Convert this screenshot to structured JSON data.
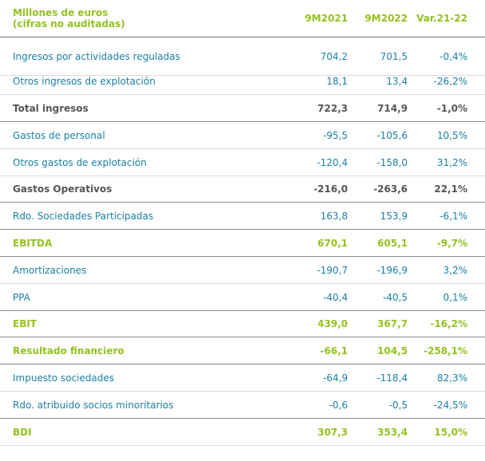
{
  "header": {
    "title_line1": "Millones de euros",
    "title_line2": "(cifras no auditadas)",
    "col_2021": "9M2021",
    "col_2022": "9M2022",
    "col_var": "Var.21-22"
  },
  "colors": {
    "accent_green": "#94c11f",
    "row_blue": "#1a7fa6",
    "total_gray": "#555555"
  },
  "rows": [
    {
      "label": "Ingresos por actividades reguladas",
      "v2021": "704,2",
      "v2022": "701,5",
      "var": "-0,4%",
      "style": "blue"
    },
    {
      "label": "Otros ingresos de explotación",
      "v2021": "18,1",
      "v2022": "13,4",
      "var": "-26,2%",
      "style": "blue"
    },
    {
      "label": "Total ingresos",
      "v2021": "722,3",
      "v2022": "714,9",
      "var": "-1,0%",
      "style": "gray"
    },
    {
      "label": "Gastos de personal",
      "v2021": "-95,5",
      "v2022": "-105,6",
      "var": "10,5%",
      "style": "blue"
    },
    {
      "label": "Otros gastos de explotación",
      "v2021": "-120,4",
      "v2022": "-158,0",
      "var": "31,2%",
      "style": "blue"
    },
    {
      "label": "Gastos Operativos",
      "v2021": "-216,0",
      "v2022": "-263,6",
      "var": "22,1%",
      "style": "gray"
    },
    {
      "label": "Rdo. Sociedades Participadas",
      "v2021": "163,8",
      "v2022": "153,9",
      "var": "-6,1%",
      "style": "blue"
    },
    {
      "label": "EBITDA",
      "v2021": "670,1",
      "v2022": "605,1",
      "var": "-9,7%",
      "style": "green"
    },
    {
      "label": "Amortizaciones",
      "v2021": "-190,7",
      "v2022": "-196,9",
      "var": "3,2%",
      "style": "blue"
    },
    {
      "label": "PPA",
      "v2021": "-40,4",
      "v2022": "-40,5",
      "var": "0,1%",
      "style": "blue"
    },
    {
      "label": "EBIT",
      "v2021": "439,0",
      "v2022": "367,7",
      "var": "-16,2%",
      "style": "green"
    },
    {
      "label": "Resultado financiero",
      "v2021": "-66,1",
      "v2022": "104,5",
      "var": "-258,1%",
      "style": "green"
    },
    {
      "label": "Impuesto sociedades",
      "v2021": "-64,9",
      "v2022": "-118,4",
      "var": "82,3%",
      "style": "blue"
    },
    {
      "label": "Rdo. atribuido socios minoritarios",
      "v2021": "-0,6",
      "v2022": "-0,5",
      "var": "-24,5%",
      "style": "blue"
    },
    {
      "label": "BDI",
      "v2021": "307,3",
      "v2022": "353,4",
      "var": "15,0%",
      "style": "green"
    }
  ]
}
